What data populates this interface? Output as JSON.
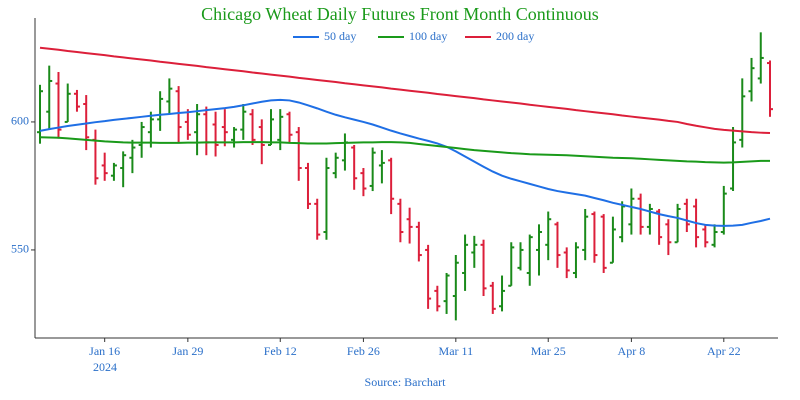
{
  "chart_data": {
    "type": "ohlc",
    "title": "Chicago Wheat Daily Futures Front Month Continuous",
    "title_color": "#1a9a1a",
    "source": "Source: Barchart",
    "x_year_label": "2024",
    "axis_label_color": "#2a6fc9",
    "up_color": "#1a8a1a",
    "down_color": "#dc1f3a",
    "categories": [
      null,
      null,
      null,
      null,
      null,
      null,
      null,
      "Jan 16",
      null,
      null,
      null,
      null,
      null,
      null,
      null,
      null,
      "Jan 29",
      null,
      null,
      null,
      null,
      null,
      null,
      null,
      null,
      null,
      "Feb 12",
      null,
      null,
      null,
      null,
      null,
      null,
      null,
      null,
      "Feb 26",
      null,
      null,
      null,
      null,
      null,
      null,
      null,
      null,
      null,
      "Mar 11",
      null,
      null,
      null,
      null,
      null,
      null,
      null,
      null,
      null,
      "Mar 25",
      null,
      null,
      null,
      null,
      null,
      null,
      null,
      null,
      "Apr 8",
      null,
      null,
      null,
      null,
      null,
      null,
      null,
      null,
      null,
      "Apr 22",
      null,
      null,
      null,
      null,
      null
    ],
    "ohlc": {
      "open": [
        596,
        604,
        615,
        600,
        611,
        607,
        593,
        583,
        579,
        582,
        586,
        591,
        596,
        601,
        608,
        612,
        600,
        596,
        603,
        599,
        598,
        593,
        597,
        603,
        598,
        591,
        593,
        603,
        596,
        582,
        568,
        557,
        580,
        585,
        590,
        580,
        575,
        583,
        585,
        568,
        562,
        559,
        550,
        534,
        530,
        532,
        541,
        549,
        552,
        536,
        528,
        536,
        543,
        541,
        550,
        552,
        560,
        549,
        541,
        550,
        564,
        563,
        545,
        555,
        560,
        570,
        559,
        565,
        560,
        553,
        568,
        567,
        558,
        552,
        557,
        574,
        593,
        612,
        617,
        623
      ],
      "high": [
        614.5,
        622,
        619.5,
        615,
        612.5,
        610.5,
        597,
        588,
        584,
        588.5,
        593,
        600,
        604,
        612,
        617,
        614,
        605,
        607,
        606,
        604,
        605,
        598,
        607,
        605,
        601,
        605,
        605,
        604,
        598,
        584,
        570,
        586,
        588,
        595.5,
        591,
        582,
        590,
        589,
        586,
        570,
        566.5,
        561,
        552,
        536,
        541,
        548,
        556,
        555.5,
        554,
        537.5,
        540,
        553,
        553,
        556,
        560,
        565,
        561,
        551,
        553,
        566,
        565,
        564,
        563,
        569,
        574,
        572,
        568,
        566,
        562,
        568,
        570,
        570,
        560,
        560,
        575,
        598,
        617,
        625,
        635,
        624
      ],
      "low": [
        591.5,
        597,
        593.5,
        600,
        604,
        589,
        575.5,
        577,
        577,
        574.5,
        580,
        586,
        590,
        596.5,
        603,
        592,
        593,
        587,
        587,
        586.5,
        590.5,
        590,
        593,
        591,
        583.5,
        591,
        589,
        592,
        577,
        566,
        554,
        554,
        578,
        581,
        573.5,
        571,
        573,
        576,
        564,
        553,
        552.5,
        545.5,
        527,
        526,
        525,
        522.5,
        534,
        543,
        532,
        525,
        526,
        536,
        542,
        536,
        540,
        546,
        543,
        539,
        539,
        546,
        545,
        541,
        545,
        553,
        556,
        556,
        556,
        552,
        548,
        553,
        557,
        551,
        551,
        551,
        556,
        573,
        590,
        608,
        615,
        602
      ],
      "close": [
        612,
        616,
        597,
        611,
        606,
        594,
        578,
        580,
        583,
        587,
        590,
        598,
        601,
        609,
        613,
        598,
        595,
        603,
        592,
        591,
        596,
        597,
        604,
        593,
        591,
        601,
        602,
        595,
        582,
        568,
        556,
        582,
        586,
        592,
        578,
        574,
        588,
        584,
        570,
        557,
        559,
        548,
        531,
        528,
        540,
        545,
        552,
        552,
        535,
        527,
        534,
        551,
        550,
        555,
        557,
        562,
        548,
        542,
        551,
        563,
        548,
        543,
        558,
        567,
        570,
        559,
        566,
        555,
        553,
        566,
        560,
        555,
        553,
        557,
        572,
        592,
        610,
        621,
        625,
        605
      ]
    },
    "series": [
      {
        "name": "50 day",
        "color": "#1f6fe5",
        "values": [
          596.5,
          597.2,
          597.8,
          598.4,
          598.9,
          599.4,
          599.9,
          600.3,
          600.8,
          601.2,
          601.6,
          602.0,
          602.4,
          602.8,
          603.1,
          603.5,
          603.8,
          604.2,
          604.6,
          605.0,
          605.4,
          605.9,
          606.5,
          607.2,
          607.9,
          608.4,
          608.6,
          608.4,
          607.6,
          606.5,
          605.3,
          604.0,
          602.8,
          601.8,
          600.9,
          600.0,
          599.0,
          597.8,
          596.6,
          595.5,
          594.5,
          593.5,
          592.6,
          591.6,
          590.3,
          588.5,
          586.5,
          584.5,
          582.5,
          580.6,
          579.0,
          577.8,
          576.8,
          575.8,
          574.8,
          573.8,
          573.0,
          572.4,
          571.8,
          571.2,
          570.3,
          569.4,
          568.4,
          567.6,
          566.8,
          566.0,
          565.0,
          564.0,
          563.2,
          562.5,
          561.5,
          560.5,
          559.8,
          559.5,
          559.4,
          559.5,
          559.8,
          560.6,
          561.3,
          562.2
        ]
      },
      {
        "name": "100 day",
        "color": "#1a9a1a",
        "values": [
          594.0,
          593.9,
          593.8,
          593.6,
          593.3,
          593.0,
          592.7,
          592.4,
          592.2,
          592.0,
          591.9,
          591.9,
          591.9,
          591.8,
          591.8,
          591.8,
          591.9,
          591.9,
          592.0,
          592.0,
          592.0,
          592.0,
          592.1,
          592.1,
          592.1,
          592.0,
          592.0,
          591.8,
          591.7,
          591.6,
          591.6,
          591.6,
          591.7,
          591.8,
          591.9,
          592.0,
          592.0,
          592.1,
          592.1,
          592.0,
          591.8,
          591.4,
          591.0,
          590.6,
          590.2,
          589.8,
          589.4,
          589.0,
          588.7,
          588.4,
          588.1,
          587.8,
          587.6,
          587.4,
          587.3,
          587.2,
          587.1,
          587.0,
          586.8,
          586.6,
          586.4,
          586.2,
          586.0,
          585.9,
          585.8,
          585.6,
          585.4,
          585.2,
          585.0,
          584.8,
          584.6,
          584.5,
          584.3,
          584.2,
          584.1,
          584.2,
          584.4,
          584.6,
          584.8,
          584.8
        ]
      },
      {
        "name": "200 day",
        "color": "#dc1f3a",
        "values": [
          629.0,
          628.6,
          628.2,
          627.7,
          627.3,
          626.9,
          626.5,
          626.1,
          625.6,
          625.2,
          624.8,
          624.4,
          624.0,
          623.5,
          623.1,
          622.7,
          622.3,
          621.9,
          621.4,
          621.0,
          620.6,
          620.2,
          619.8,
          619.3,
          618.9,
          618.5,
          618.1,
          617.7,
          617.2,
          616.8,
          616.4,
          616.0,
          615.6,
          615.1,
          614.7,
          614.3,
          613.9,
          613.5,
          613.0,
          612.6,
          612.2,
          611.8,
          611.4,
          610.9,
          610.5,
          610.1,
          609.7,
          609.3,
          608.8,
          608.4,
          608.0,
          607.6,
          607.2,
          606.7,
          606.3,
          605.9,
          605.5,
          605.1,
          604.6,
          604.2,
          603.8,
          603.4,
          603.0,
          602.5,
          602.1,
          601.7,
          601.3,
          600.9,
          600.4,
          600.0,
          599.2,
          598.5,
          597.9,
          597.3,
          596.9,
          596.6,
          596.3,
          596.0,
          595.8,
          595.7
        ]
      }
    ],
    "ylim": [
      515.6,
      640.6
    ],
    "yticks": [
      550,
      600
    ],
    "grid": false
  }
}
